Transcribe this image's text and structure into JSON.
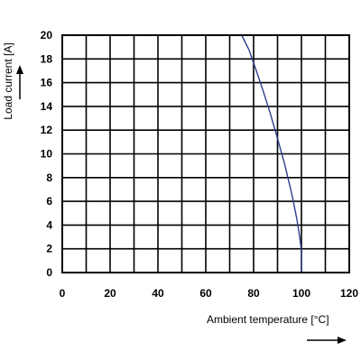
{
  "chart_data": {
    "type": "line",
    "xlabel": "Ambient temperature [°C]",
    "ylabel": "Load current [A]",
    "xlim": [
      0,
      120
    ],
    "ylim": [
      0,
      20
    ],
    "x_ticks": [
      0,
      20,
      40,
      60,
      80,
      100,
      120
    ],
    "y_ticks": [
      0,
      2,
      4,
      6,
      8,
      10,
      12,
      14,
      16,
      18,
      20
    ],
    "x_grid_step": 10,
    "y_grid_step": 2,
    "grid": true,
    "series": [
      {
        "color": "#2b3f8f",
        "x": [
          0,
          75,
          78,
          81,
          84,
          87,
          90,
          93,
          96,
          98,
          99.3,
          100,
          100
        ],
        "y": [
          20,
          20,
          18.8,
          17.1,
          15.3,
          13.4,
          11.3,
          9.1,
          6.6,
          4.6,
          3.0,
          1.8,
          0
        ]
      }
    ]
  }
}
